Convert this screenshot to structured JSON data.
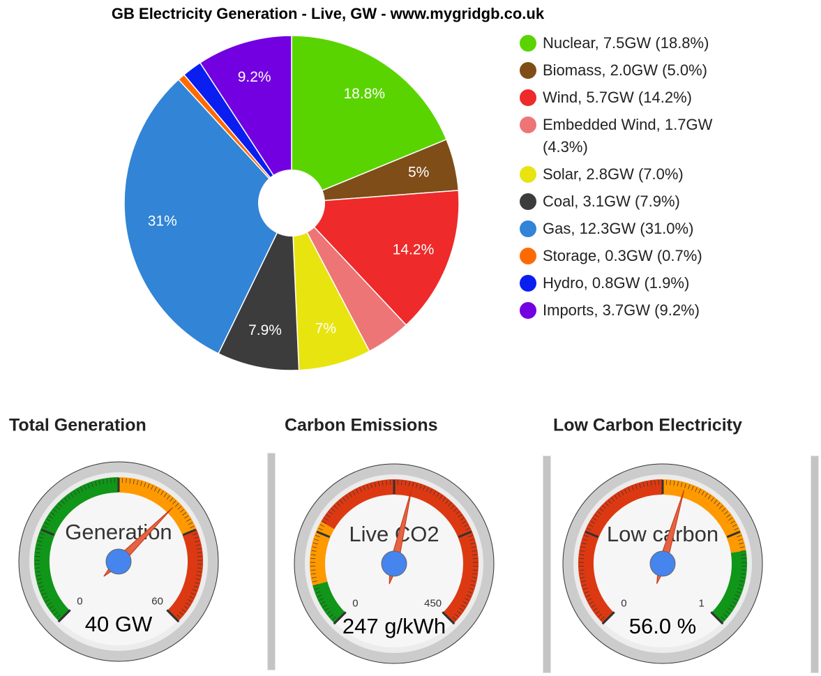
{
  "chart_data": [
    {
      "type": "pie",
      "title": "GB Electricity Generation - Live, GW - www.mygridgb.co.uk",
      "categories": [
        "Nuclear, 7.5GW (18.8%)",
        "Biomass, 2.0GW (5.0%)",
        "Wind, 5.7GW (14.2%)",
        "Embedded Wind, 1.7GW (4.3%)",
        "Solar, 2.8GW (7.0%)",
        "Coal, 3.1GW (7.9%)",
        "Gas, 12.3GW (31.0%)",
        "Storage, 0.3GW (0.7%)",
        "Hydro, 0.8GW (1.9%)",
        "Imports, 3.7GW (9.2%)"
      ],
      "values": [
        18.8,
        5.0,
        14.2,
        4.3,
        7.0,
        7.9,
        31.0,
        0.7,
        1.9,
        9.2
      ],
      "value_labels": [
        "18.8%",
        "5%",
        "14.2%",
        null,
        "7%",
        "7.9%",
        "31%",
        null,
        null,
        "9.2%"
      ],
      "colors": [
        "#5ad400",
        "#7f4d18",
        "#ee2a2a",
        "#ee7575",
        "#e8e410",
        "#3c3c3c",
        "#3184d6",
        "#ff6a00",
        "#0a1ef0",
        "#7200e0"
      ]
    },
    {
      "type": "gauge",
      "title": "Total Generation",
      "label": "Generation",
      "values": [
        40
      ],
      "value_labels": [
        "40 GW"
      ],
      "ylim": [
        0,
        60
      ],
      "yticks": [
        0,
        60
      ],
      "bands": [
        {
          "from": 0,
          "to": 30,
          "color": "#109618"
        },
        {
          "from": 30,
          "to": 45,
          "color": "#ff9900"
        },
        {
          "from": 45,
          "to": 60,
          "color": "#dc3912"
        }
      ]
    },
    {
      "type": "gauge",
      "title": "Carbon Emissions",
      "label": "Live CO2",
      "values": [
        247
      ],
      "value_labels": [
        "247 g/kWh"
      ],
      "ylim": [
        0,
        450
      ],
      "yticks": [
        0,
        450
      ],
      "bands": [
        {
          "from": 0,
          "to": 50,
          "color": "#109618"
        },
        {
          "from": 50,
          "to": 125,
          "color": "#ff9900"
        },
        {
          "from": 125,
          "to": 450,
          "color": "#dc3912"
        }
      ]
    },
    {
      "type": "gauge",
      "title": "Low Carbon Electricity",
      "label": "Low carbon",
      "values": [
        0.56
      ],
      "value_labels": [
        "56.0 %"
      ],
      "ylim": [
        0,
        1
      ],
      "yticks": [
        0,
        1
      ],
      "bands": [
        {
          "from": 0,
          "to": 0.5,
          "color": "#dc3912"
        },
        {
          "from": 0.5,
          "to": 0.8,
          "color": "#ff9900"
        },
        {
          "from": 0.8,
          "to": 1,
          "color": "#109618"
        }
      ]
    }
  ]
}
